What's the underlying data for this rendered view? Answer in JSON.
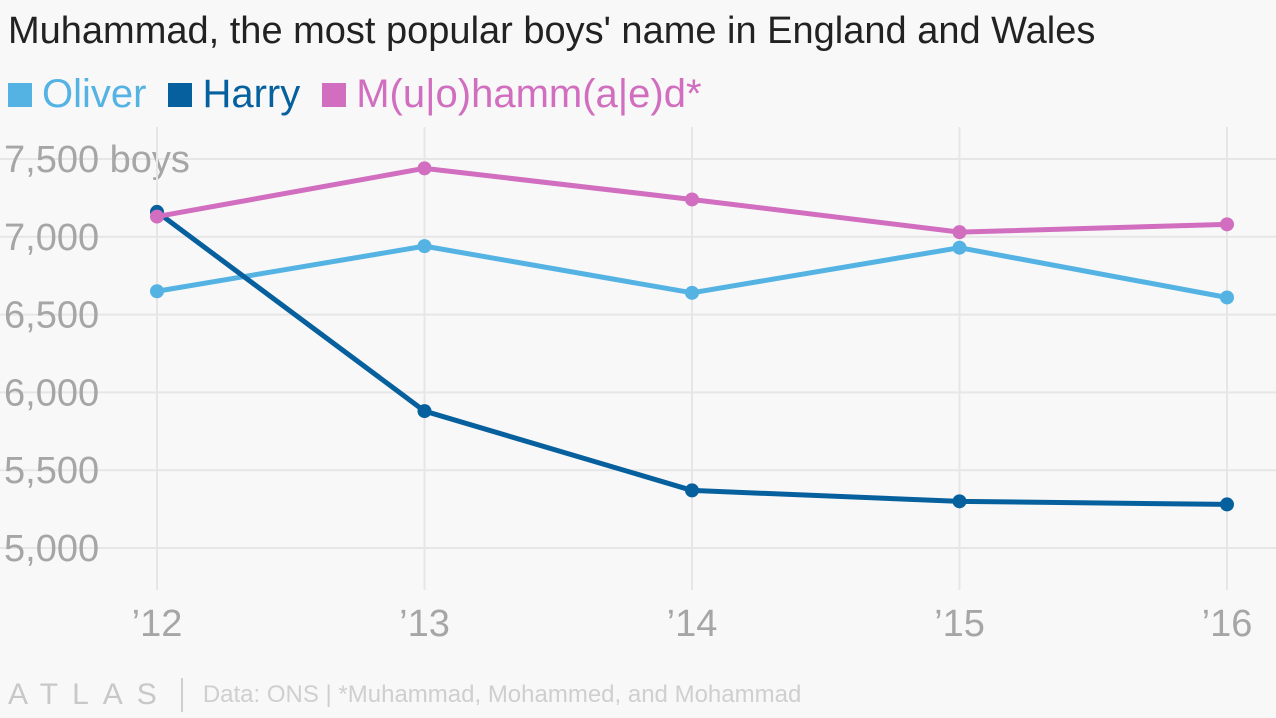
{
  "title": "Muhammad, the most popular boys' name in England and Wales",
  "logo_text": "ATLAS",
  "source_note": "Data: ONS | *Muhammad, Mohammed, and Mohammad",
  "colors": {
    "background": "#f8f8f8",
    "grid": "#e6e6e6",
    "tick_text": "#a6a6a6"
  },
  "chart_data": {
    "type": "line",
    "title": "Muhammad, the most popular boys' name in England and Wales",
    "xlabel": "",
    "ylabel": "",
    "x": [
      "’12",
      "’13",
      "’14",
      "’15",
      "’16"
    ],
    "y_ticks": [
      5000,
      5500,
      6000,
      6500,
      7000,
      7500
    ],
    "y_tick_labels": [
      "5,000",
      "5,500",
      "6,000",
      "6,500",
      "7,000",
      "7,500 boys"
    ],
    "ylim": [
      4900,
      7550
    ],
    "grid": true,
    "legend_position": "top-left",
    "series": [
      {
        "name": "Oliver",
        "color": "#55b3e4",
        "values": [
          6650,
          6940,
          6640,
          6930,
          6610
        ]
      },
      {
        "name": "Harry",
        "color": "#06609e",
        "values": [
          7160,
          5880,
          5370,
          5300,
          5280
        ]
      },
      {
        "name": "M(u|o)hamm(a|e)d*",
        "color": "#d16ebf",
        "values": [
          7130,
          7440,
          7240,
          7030,
          7080
        ]
      }
    ]
  }
}
